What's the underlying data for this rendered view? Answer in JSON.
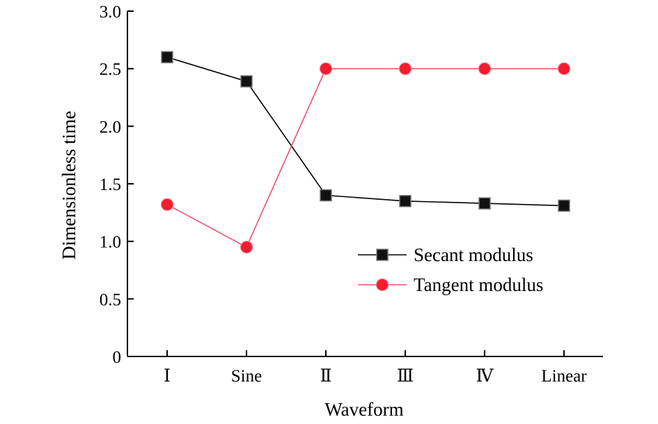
{
  "chart_data": {
    "type": "line",
    "xlabel": "Waveform",
    "ylabel": "Dimensionless time",
    "categories": [
      "Ⅰ",
      "Sine",
      "Ⅱ",
      "Ⅲ",
      "Ⅳ",
      "Linear"
    ],
    "ylim": [
      0,
      3.0
    ],
    "yticks": [
      "0",
      "0.5",
      "1.0",
      "1.5",
      "2.0",
      "2.5",
      "3.0"
    ],
    "grid": false,
    "legend_position": "center-right",
    "series": [
      {
        "name": "Secant modulus",
        "marker": "square",
        "line_color": "#000000",
        "marker_color": "#111111",
        "values": [
          2.6,
          2.39,
          1.4,
          1.35,
          1.33,
          1.31
        ]
      },
      {
        "name": "Tangent modulus",
        "marker": "circle",
        "line_color": "#f0506e",
        "marker_color": "#f21c2e",
        "values": [
          1.32,
          0.95,
          2.5,
          2.5,
          2.5,
          2.5
        ]
      }
    ]
  }
}
